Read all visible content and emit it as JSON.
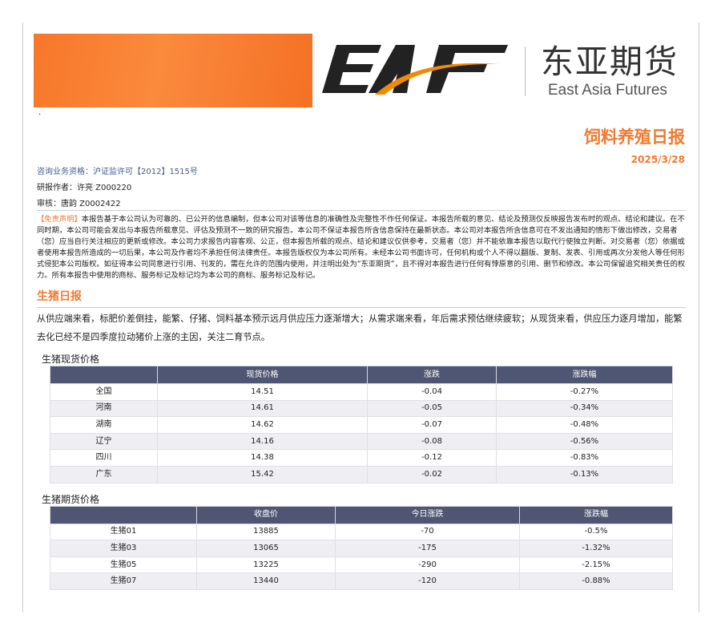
{
  "header": {
    "logo_text": "EAF",
    "company_cn": "东亚期货",
    "company_en": "East Asia Futures",
    "dot": "·",
    "report_title": "饲料养殖日报",
    "date": "2025/3/28"
  },
  "meta": {
    "license": "咨询业务资格：沪证监许可【2012】1515号",
    "author": "研报作者：许亮 Z000220",
    "reviewer": "审核：唐韵 Z0002422"
  },
  "disclaimer": {
    "tag": "【免责声明】",
    "text": "本报告基于本公司认为可靠的、已公开的信息编制，但本公司对该等信息的准确性及完整性不作任何保证。本报告所载的意见、结论及预测仅反映报告发布时的观点、结论和建议。在不同时期，本公司可能会发出与本报告所载意见、评估及预测不一致的研究报告。本公司不保证本报告所含信息保持在最新状态。本公司对本报告所含信息可在不发出通知的情形下做出修改，交易者（您）应当自行关注相应的更新或修改。本公司力求报告内容客观、公正，但本报告所载的观点、结论和建议仅供参考，交易者（您）并不能依靠本报告以取代行使独立判断。对交易者（您）依据或者使用本报告所造成的一切后果，本公司及作者均不承担任何法律责任。本报告版权仅为本公司所有。未经本公司书面许可，任何机构或个人不得以翻版、复制、发表、引用或再次分发他人等任何形式侵犯本公司版权。如征得本公司同意进行引用、刊发的，需在允许的范围内使用，并注明出处为“东亚期货”，且不得对本报告进行任何有悖原意的引用、删节和修改。本公司保留追究相关责任的权力。所有本报告中使用的商标、服务标记及标记均为本公司的商标、服务标记及标记。"
  },
  "section": {
    "title": "生猪日报",
    "summary": "从供应端来看，标肥价差倒挂，能繁、仔猪、饲料基本预示远月供应压力逐渐增大；从需求端来看，年后需求预估继续疲软；从现货来看，供应压力逐月增加，能繁去化已经不是四季度拉动猪价上涨的主因，关注二育节点。"
  },
  "spot_table": {
    "caption": "生猪现货价格",
    "headers": [
      "",
      "现货价格",
      "涨跌",
      "涨跌幅"
    ],
    "rows": [
      [
        "全国",
        "14.51",
        "-0.04",
        "-0.27%"
      ],
      [
        "河南",
        "14.61",
        "-0.05",
        "-0.34%"
      ],
      [
        "湖南",
        "14.62",
        "-0.07",
        "-0.48%"
      ],
      [
        "辽宁",
        "14.16",
        "-0.08",
        "-0.56%"
      ],
      [
        "四川",
        "14.38",
        "-0.12",
        "-0.83%"
      ],
      [
        "广东",
        "15.42",
        "-0.02",
        "-0.13%"
      ]
    ]
  },
  "futures_table": {
    "caption": "生猪期货价格",
    "headers": [
      "",
      "收盘价",
      "今日涨跌",
      "涨跌幅"
    ],
    "rows": [
      [
        "生猪01",
        "13885",
        "-70",
        "-0.5%"
      ],
      [
        "生猪03",
        "13065",
        "-175",
        "-1.32%"
      ],
      [
        "生猪05",
        "13225",
        "-290",
        "-2.15%"
      ],
      [
        "生猪07",
        "13440",
        "-120",
        "-0.88%"
      ]
    ]
  },
  "colors": {
    "accent": "#f07a30",
    "table_header": "#4f5673"
  }
}
